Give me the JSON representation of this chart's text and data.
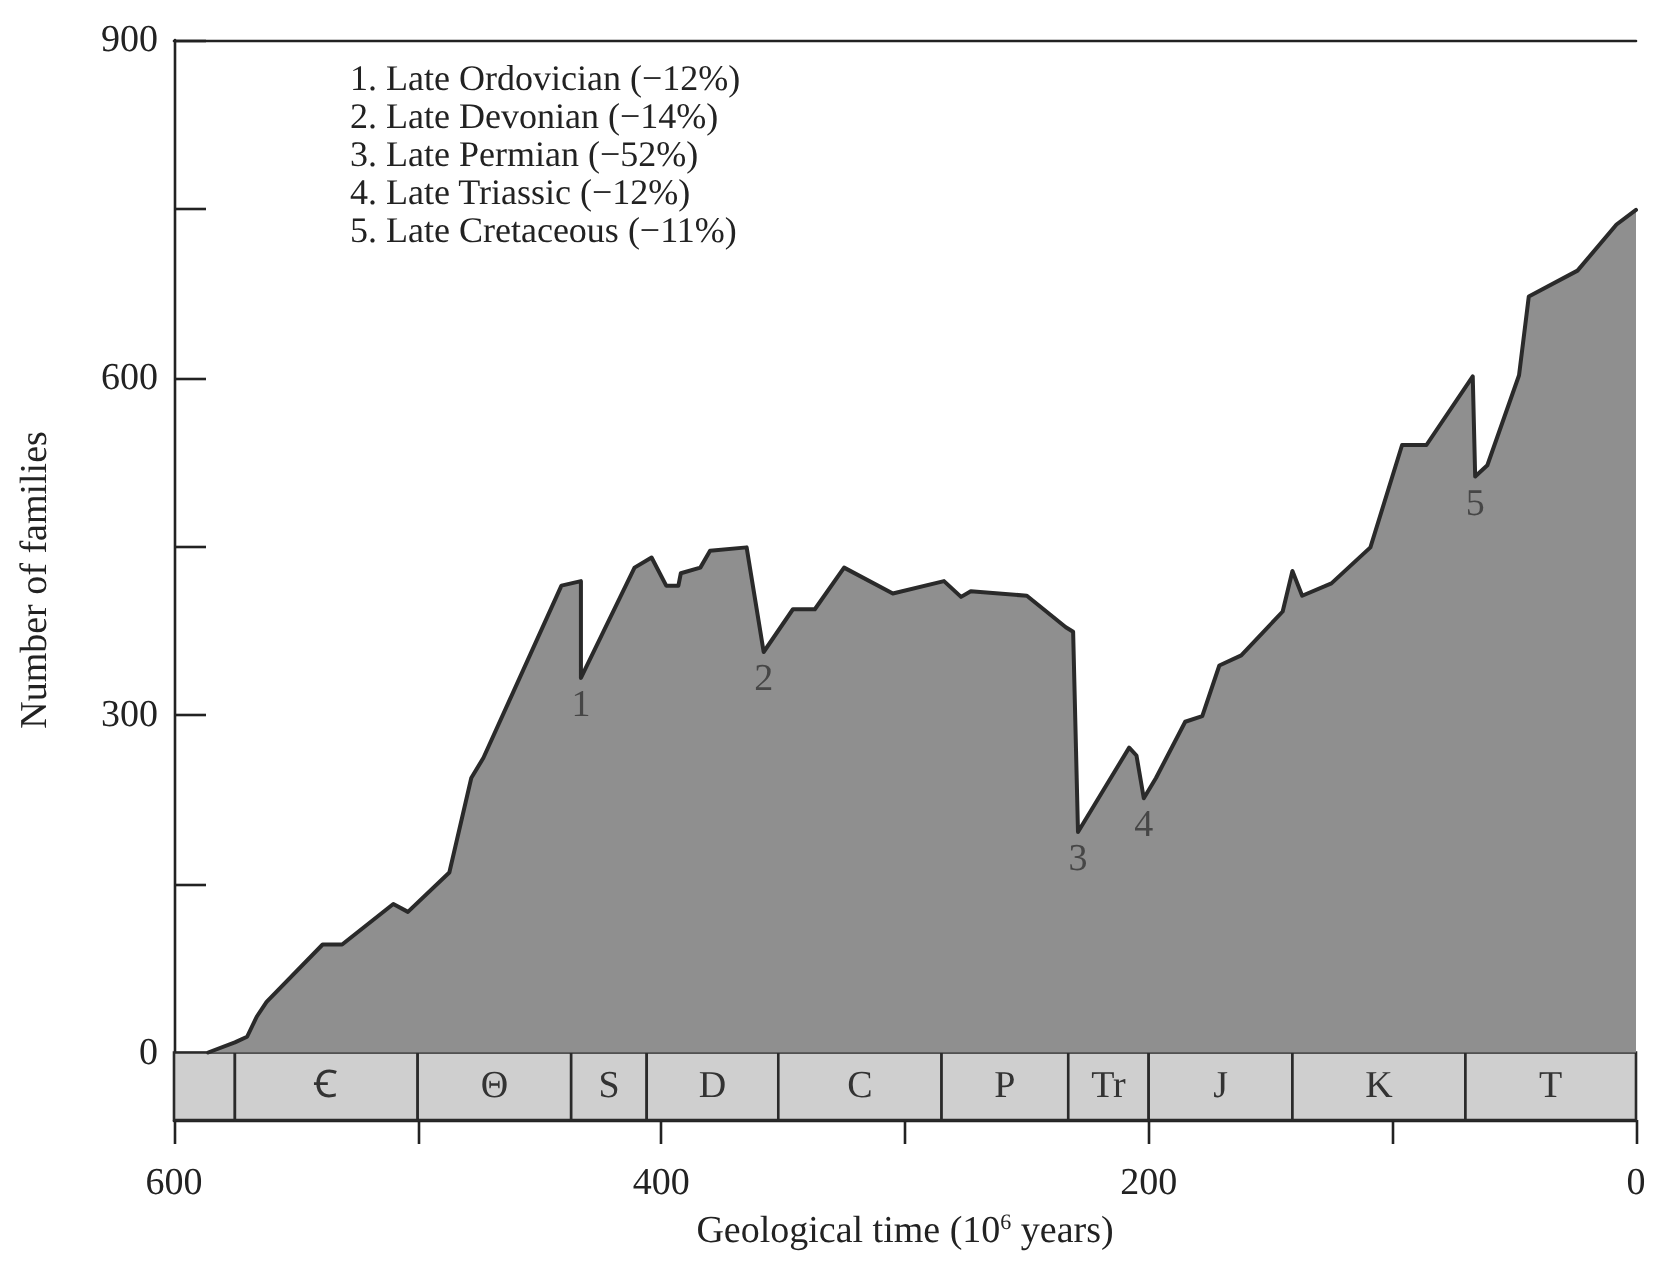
{
  "chart_data": {
    "type": "area",
    "xlabel": "Geological time (10$^{6}$ years)",
    "ylabel": "Number of families",
    "x": [
      586,
      575,
      570,
      566,
      562,
      539,
      531,
      510,
      504,
      487,
      478,
      473,
      441,
      433,
      433,
      411,
      404,
      398,
      393,
      392,
      384,
      380,
      365,
      358,
      346,
      337,
      325,
      305,
      284,
      277,
      273,
      250,
      234,
      231,
      229,
      208,
      205,
      202,
      197,
      185,
      178,
      171,
      162,
      145,
      141,
      137,
      125,
      109,
      96,
      86,
      67,
      66,
      61,
      48,
      44,
      24,
      8,
      0
    ],
    "series": [
      {
        "color": "#8f8f8f",
        "values": [
          0,
          9,
          14,
          32,
          45,
          96,
          96,
          132,
          125,
          160,
          244,
          262,
          415,
          419,
          333,
          431,
          440,
          415,
          415,
          426,
          431,
          446,
          449,
          356,
          394,
          394,
          431,
          408,
          419,
          405,
          410,
          406,
          378,
          374,
          196,
          271,
          264,
          226,
          244,
          294,
          299,
          344,
          353,
          392,
          428,
          406,
          417,
          449,
          540,
          540,
          601,
          512,
          522,
          602,
          672,
          695,
          736,
          749
        ]
      }
    ],
    "xlim": [
      600,
      0
    ],
    "xticks": [
      600,
      {
        "value": 500,
        "label": null
      },
      400,
      {
        "value": 300,
        "label": null
      },
      200,
      {
        "value": 100,
        "label": null
      },
      0
    ],
    "ylim": [
      -60,
      900
    ],
    "yticks": [
      0,
      {
        "value": 150,
        "label": null
      },
      300,
      {
        "value": 450,
        "label": null
      },
      600,
      {
        "value": 750,
        "label": null
      },
      900
    ],
    "bands": [
      {
        "axis": "x",
        "from": 600,
        "to": 575,
        "label": null,
        "color": "#cfcfcf"
      },
      {
        "axis": "x",
        "from": 575,
        "to": 500,
        "label": "Ꞓ",
        "color": "#cfcfcf"
      },
      {
        "axis": "x",
        "from": 500,
        "to": 437,
        "label": "Θ",
        "color": "#cfcfcf"
      },
      {
        "axis": "x",
        "from": 437,
        "to": 406,
        "label": "S",
        "color": "#cfcfcf"
      },
      {
        "axis": "x",
        "from": 406,
        "to": 352,
        "label": "D",
        "color": "#cfcfcf"
      },
      {
        "axis": "x",
        "from": 352,
        "to": 285,
        "label": "C",
        "color": "#cfcfcf"
      },
      {
        "axis": "x",
        "from": 285,
        "to": 233,
        "label": "P",
        "color": "#cfcfcf"
      },
      {
        "axis": "x",
        "from": 233,
        "to": 200,
        "label": "Tr",
        "color": "#cfcfcf"
      },
      {
        "axis": "x",
        "from": 200,
        "to": 141,
        "label": "J",
        "color": "#cfcfcf"
      },
      {
        "axis": "x",
        "from": 141,
        "to": 70,
        "label": "K",
        "color": "#cfcfcf"
      },
      {
        "axis": "x",
        "from": 70,
        "to": 0,
        "label": "T",
        "color": "#cfcfcf"
      }
    ],
    "annotations": [
      "1. Late Ordovician (−12%)",
      "2. Late Devonian (−14%)",
      "3. Late Permian (−52%)",
      "4. Late Triassic (−12%)",
      "5. Late Cretaceous (−11%)",
      {
        "text": "1",
        "x": 433,
        "y": 333
      },
      {
        "text": "2",
        "x": 358,
        "y": 356
      },
      {
        "text": "3",
        "x": 229,
        "y": 196
      },
      {
        "text": "4",
        "x": 202,
        "y": 226
      },
      {
        "text": "5",
        "x": 66,
        "y": 512
      }
    ],
    "grid": false,
    "marker": "none",
    "line_style": "solid"
  }
}
